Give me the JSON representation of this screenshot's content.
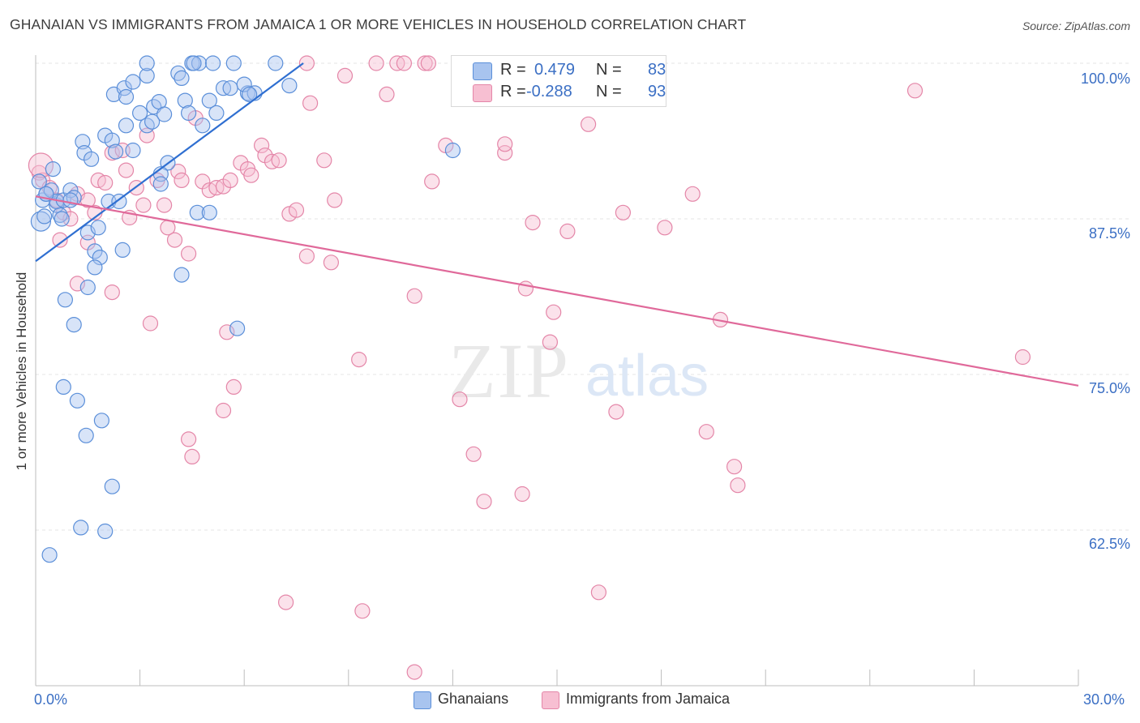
{
  "title": "GHANAIAN VS IMMIGRANTS FROM JAMAICA 1 OR MORE VEHICLES IN HOUSEHOLD CORRELATION CHART",
  "source": "Source: ZipAtlas.com",
  "watermark": {
    "zip": "ZIP",
    "atlas": "atlas"
  },
  "legend_top": {
    "rows": [
      {
        "r_label": "R =",
        "r_value": "0.479",
        "n_label": "N =",
        "n_value": "83",
        "color": "#a8c4ef",
        "border": "#5b8fd9"
      },
      {
        "r_label": "R =",
        "r_value": "-0.288",
        "n_label": "N =",
        "n_value": "93",
        "color": "#f7bfd2",
        "border": "#e486a8"
      }
    ]
  },
  "legend_bottom": [
    {
      "label": "Ghanaians",
      "color": "#a8c4ef",
      "border": "#5b8fd9"
    },
    {
      "label": "Immigrants from Jamaica",
      "color": "#f7bfd2",
      "border": "#e486a8"
    }
  ],
  "axis": {
    "x_min_label": "0.0%",
    "x_max_label": "30.0%",
    "y_label": "1 or more Vehicles in Household",
    "y_ticks": [
      "100.0%",
      "87.5%",
      "75.0%",
      "62.5%"
    ]
  },
  "colors": {
    "blue_fill": "#a8c4ef",
    "blue_stroke": "#5b8fd9",
    "blue_line": "#2f6fd1",
    "pink_fill": "#f7bfd2",
    "pink_stroke": "#e486a8",
    "pink_line": "#e0699a",
    "tick_text": "#3b6fc4",
    "grid": "#e4e4e4"
  },
  "chart_data": {
    "type": "scatter",
    "title": "GHANAIAN VS IMMIGRANTS FROM JAMAICA 1 OR MORE VEHICLES IN HOUSEHOLD CORRELATION CHART",
    "xlabel": "",
    "ylabel": "1 or more Vehicles in Household",
    "xlim": [
      0,
      30
    ],
    "ylim": [
      52,
      100.5
    ],
    "grid": true,
    "legend_placement": "top-center",
    "series": [
      {
        "name": "Ghanaians",
        "r": 0.479,
        "n": 83,
        "trend": [
          [
            0,
            84.1
          ],
          [
            7.7,
            100.0
          ]
        ],
        "points": [
          [
            0.15,
            87.3
          ],
          [
            0.1,
            90.5
          ],
          [
            0.2,
            89.0
          ],
          [
            0.3,
            89.5
          ],
          [
            0.25,
            87.7
          ],
          [
            0.5,
            91.5
          ],
          [
            0.45,
            89.8
          ],
          [
            0.6,
            88.6
          ],
          [
            0.7,
            87.8
          ],
          [
            0.6,
            88.9
          ],
          [
            0.75,
            87.5
          ],
          [
            0.8,
            89.0
          ],
          [
            1.0,
            89.8
          ],
          [
            1.1,
            89.2
          ],
          [
            1.35,
            93.7
          ],
          [
            1.4,
            92.8
          ],
          [
            1.6,
            92.3
          ],
          [
            1.5,
            86.4
          ],
          [
            1.8,
            86.8
          ],
          [
            2.0,
            94.2
          ],
          [
            2.2,
            93.8
          ],
          [
            2.3,
            92.9
          ],
          [
            2.1,
            88.9
          ],
          [
            2.4,
            88.9
          ],
          [
            1.7,
            84.9
          ],
          [
            1.85,
            84.4
          ],
          [
            1.7,
            83.6
          ],
          [
            1.5,
            82.0
          ],
          [
            2.5,
            85.0
          ],
          [
            2.6,
            95.0
          ],
          [
            2.8,
            93.0
          ],
          [
            2.25,
            97.5
          ],
          [
            2.55,
            98.0
          ],
          [
            2.6,
            97.3
          ],
          [
            2.8,
            98.5
          ],
          [
            3.0,
            96.0
          ],
          [
            3.2,
            99.0
          ],
          [
            3.2,
            95.0
          ],
          [
            3.4,
            96.5
          ],
          [
            3.35,
            95.3
          ],
          [
            3.55,
            96.9
          ],
          [
            3.7,
            95.9
          ],
          [
            3.8,
            92.0
          ],
          [
            3.6,
            91.1
          ],
          [
            3.6,
            90.3
          ],
          [
            3.2,
            100.0
          ],
          [
            4.1,
            99.2
          ],
          [
            4.2,
            98.8
          ],
          [
            4.3,
            97.0
          ],
          [
            4.5,
            100.0
          ],
          [
            4.4,
            96.0
          ],
          [
            4.7,
            100.0
          ],
          [
            4.8,
            95.0
          ],
          [
            5.0,
            97.0
          ],
          [
            5.2,
            96.0
          ],
          [
            5.1,
            100.0
          ],
          [
            5.4,
            98.0
          ],
          [
            5.7,
            100.0
          ],
          [
            5.6,
            98.0
          ],
          [
            6.1,
            97.6
          ],
          [
            6.0,
            98.3
          ],
          [
            6.3,
            97.6
          ],
          [
            6.9,
            100.0
          ],
          [
            7.3,
            98.2
          ],
          [
            4.65,
            88.0
          ],
          [
            5.0,
            88.0
          ],
          [
            4.2,
            83.0
          ],
          [
            5.8,
            78.7
          ],
          [
            0.85,
            81.0
          ],
          [
            1.1,
            79.0
          ],
          [
            0.8,
            74.0
          ],
          [
            1.2,
            72.9
          ],
          [
            1.45,
            70.1
          ],
          [
            1.9,
            71.3
          ],
          [
            2.2,
            66.0
          ],
          [
            1.3,
            62.7
          ],
          [
            2.0,
            62.4
          ],
          [
            0.4,
            60.5
          ],
          [
            12.0,
            93.0
          ],
          [
            4.55,
            100.0
          ],
          [
            6.15,
            97.5
          ],
          [
            0.3,
            89.5
          ],
          [
            1.0,
            89.0
          ]
        ]
      },
      {
        "name": "Immigrants from Jamaica",
        "r": -0.288,
        "n": 93,
        "trend": [
          [
            0,
            89.3
          ],
          [
            30,
            74.1
          ]
        ],
        "points": [
          [
            0.1,
            91.2
          ],
          [
            0.2,
            90.6
          ],
          [
            0.4,
            90.0
          ],
          [
            0.6,
            89.0
          ],
          [
            0.8,
            88.0
          ],
          [
            1.0,
            87.5
          ],
          [
            1.2,
            89.5
          ],
          [
            1.5,
            89.0
          ],
          [
            1.7,
            88.0
          ],
          [
            1.8,
            90.6
          ],
          [
            2.0,
            90.4
          ],
          [
            2.2,
            92.8
          ],
          [
            2.5,
            93.0
          ],
          [
            2.6,
            91.4
          ],
          [
            2.7,
            87.6
          ],
          [
            2.9,
            90.0
          ],
          [
            3.1,
            88.6
          ],
          [
            3.2,
            94.2
          ],
          [
            3.5,
            90.6
          ],
          [
            3.7,
            88.6
          ],
          [
            3.8,
            86.8
          ],
          [
            4.0,
            85.8
          ],
          [
            4.1,
            91.3
          ],
          [
            4.2,
            90.6
          ],
          [
            4.4,
            84.7
          ],
          [
            4.6,
            95.6
          ],
          [
            4.8,
            90.5
          ],
          [
            5.0,
            89.8
          ],
          [
            5.2,
            90.0
          ],
          [
            5.4,
            90.1
          ],
          [
            5.6,
            90.6
          ],
          [
            5.9,
            92.0
          ],
          [
            6.1,
            91.5
          ],
          [
            6.2,
            91.0
          ],
          [
            6.5,
            93.4
          ],
          [
            6.6,
            92.6
          ],
          [
            6.8,
            92.1
          ],
          [
            7.0,
            92.2
          ],
          [
            7.3,
            87.9
          ],
          [
            7.5,
            88.2
          ],
          [
            7.8,
            84.5
          ],
          [
            7.9,
            96.8
          ],
          [
            8.3,
            92.2
          ],
          [
            8.5,
            84.0
          ],
          [
            8.6,
            89.0
          ],
          [
            8.9,
            99.0
          ],
          [
            9.3,
            76.2
          ],
          [
            9.8,
            100.0
          ],
          [
            10.1,
            97.5
          ],
          [
            10.4,
            100.0
          ],
          [
            10.6,
            100.0
          ],
          [
            10.9,
            81.3
          ],
          [
            11.2,
            100.0
          ],
          [
            11.3,
            100.0
          ],
          [
            11.4,
            90.5
          ],
          [
            11.8,
            93.4
          ],
          [
            12.2,
            73.0
          ],
          [
            12.6,
            68.6
          ],
          [
            12.9,
            64.8
          ],
          [
            13.5,
            92.8
          ],
          [
            14.0,
            65.4
          ],
          [
            14.1,
            81.9
          ],
          [
            14.3,
            87.2
          ],
          [
            14.8,
            77.6
          ],
          [
            14.9,
            80.0
          ],
          [
            15.3,
            86.5
          ],
          [
            15.9,
            95.1
          ],
          [
            16.2,
            57.5
          ],
          [
            16.7,
            72.0
          ],
          [
            16.9,
            88.0
          ],
          [
            18.1,
            86.8
          ],
          [
            18.9,
            89.5
          ],
          [
            19.3,
            70.4
          ],
          [
            19.7,
            79.4
          ],
          [
            20.1,
            67.6
          ],
          [
            20.2,
            66.1
          ],
          [
            25.3,
            97.8
          ],
          [
            28.4,
            76.4
          ],
          [
            0.7,
            85.8
          ],
          [
            1.2,
            82.3
          ],
          [
            1.5,
            85.6
          ],
          [
            2.2,
            81.6
          ],
          [
            3.3,
            79.1
          ],
          [
            5.5,
            78.4
          ],
          [
            5.7,
            74.0
          ],
          [
            5.4,
            72.1
          ],
          [
            4.4,
            69.8
          ],
          [
            4.5,
            68.4
          ],
          [
            7.2,
            56.7
          ],
          [
            9.4,
            56.0
          ],
          [
            10.9,
            51.1
          ],
          [
            7.8,
            100.0
          ],
          [
            13.5,
            93.5
          ]
        ]
      }
    ]
  }
}
